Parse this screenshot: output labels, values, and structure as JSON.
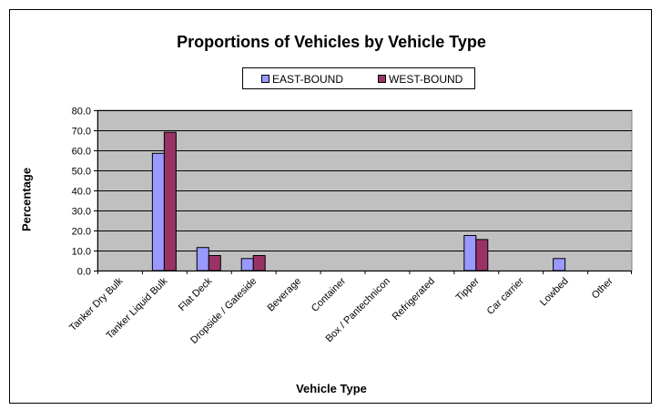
{
  "chart_data": {
    "type": "bar",
    "title": "Proportions of Vehicles by Vehicle Type",
    "xlabel": "Vehicle Type",
    "ylabel": "Percentage",
    "ylim": [
      0,
      80
    ],
    "yticks": [
      "0.0",
      "10.0",
      "20.0",
      "30.0",
      "40.0",
      "50.0",
      "60.0",
      "70.0",
      "80.0"
    ],
    "grid": true,
    "legend_position": "top",
    "categories": [
      "Tanker Dry Bulk",
      "Tanker Liquid Bulk",
      "Flat Deck",
      "Dropside / Gateside",
      "Beverage",
      "Container",
      "Box / Pantechnicon",
      "Refrigerated",
      "Tipper",
      "Car carrier",
      "Lowbed",
      "Other"
    ],
    "series": [
      {
        "name": "EAST-BOUND",
        "color": "#9999ff",
        "values": [
          0,
          58.5,
          11.5,
          6,
          0,
          0,
          0,
          0,
          17.5,
          0,
          6,
          0
        ]
      },
      {
        "name": "WEST-BOUND",
        "color": "#993366",
        "values": [
          0,
          69,
          7.5,
          7.5,
          0,
          0,
          0,
          0,
          15.5,
          0,
          0,
          0
        ]
      }
    ],
    "plot_background": "#c0c0c0"
  }
}
